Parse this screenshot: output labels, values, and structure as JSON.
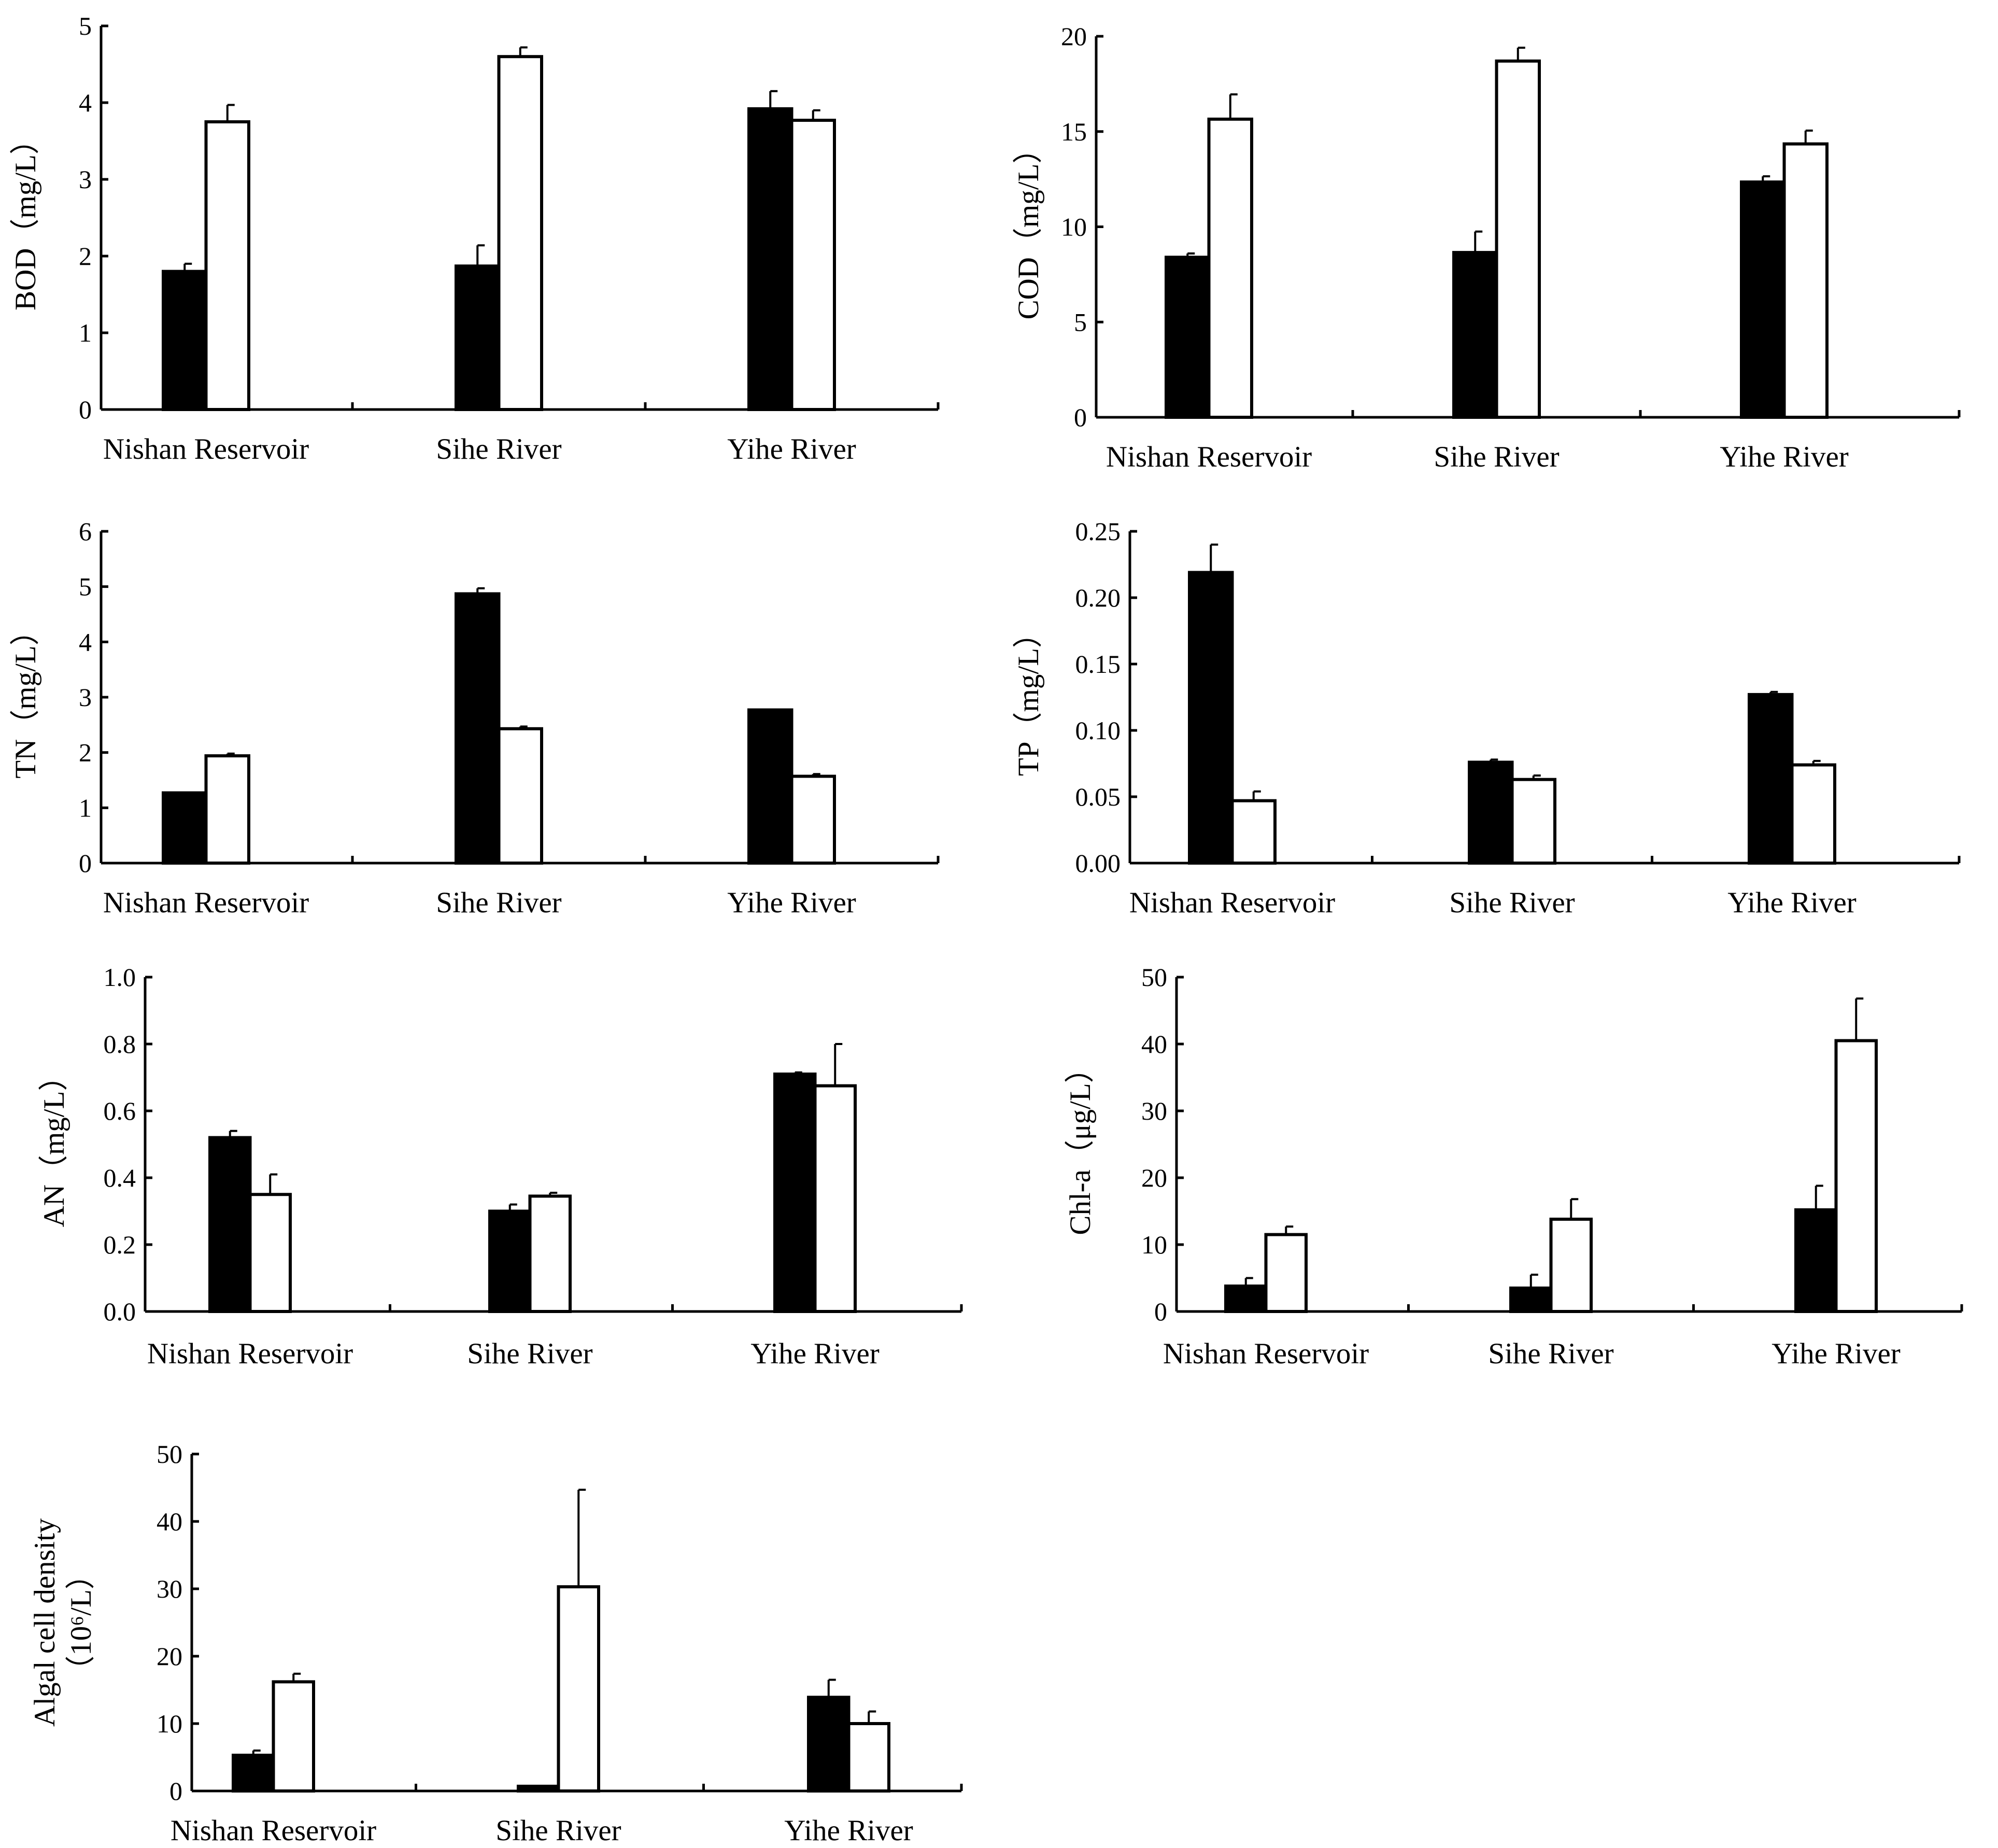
{
  "colors": {
    "series_a": "#000000",
    "series_b": "#ffffff",
    "stroke": "#000000"
  },
  "chart_data": [
    {
      "id": "bod",
      "type": "bar",
      "title": "",
      "ylabel_main": "BOD",
      "ylabel_unit": "（mg/L）",
      "ylim": [
        0,
        5
      ],
      "yticks": [
        "0",
        "1",
        "2",
        "3",
        "4",
        "5"
      ],
      "categories": [
        "Nishan Reservoir",
        "Sihe River",
        "Yihe River"
      ],
      "series": [
        {
          "name": "series 1 (black)",
          "values": [
            1.8,
            1.87,
            3.92
          ],
          "errors": [
            0.1,
            0.27,
            0.23
          ]
        },
        {
          "name": "series 2 (white)",
          "values": [
            3.75,
            4.6,
            3.77
          ],
          "errors": [
            0.22,
            0.12,
            0.13
          ]
        }
      ]
    },
    {
      "id": "cod",
      "type": "bar",
      "title": "",
      "ylabel_main": "COD",
      "ylabel_unit": "（mg/L）",
      "ylim": [
        0,
        20
      ],
      "yticks": [
        "0",
        "5",
        "10",
        "15",
        "20"
      ],
      "categories": [
        "Nishan Reservoir",
        "Sihe River",
        "Yihe River"
      ],
      "series": [
        {
          "name": "series 1 (black)",
          "values": [
            8.4,
            8.65,
            12.35
          ],
          "errors": [
            0.2,
            1.1,
            0.3
          ]
        },
        {
          "name": "series 2 (white)",
          "values": [
            15.65,
            18.7,
            14.35
          ],
          "errors": [
            1.3,
            0.7,
            0.7
          ]
        }
      ]
    },
    {
      "id": "tn",
      "type": "bar",
      "title": "",
      "ylabel_main": "TN",
      "ylabel_unit": "（mg/L）",
      "ylim": [
        0,
        6
      ],
      "yticks": [
        "0",
        "1",
        "2",
        "3",
        "4",
        "5",
        "6"
      ],
      "categories": [
        "Nishan Reservoir",
        "Sihe River",
        "Yihe River"
      ],
      "series": [
        {
          "name": "series 1 (black)",
          "values": [
            1.27,
            4.87,
            2.77
          ],
          "errors": [
            0,
            0.1,
            0
          ]
        },
        {
          "name": "series 2 (white)",
          "values": [
            1.94,
            2.43,
            1.57
          ],
          "errors": [
            0.04,
            0.04,
            0.04
          ]
        }
      ]
    },
    {
      "id": "tp",
      "type": "bar",
      "title": "",
      "ylabel_main": "TP",
      "ylabel_unit": "（mg/L）",
      "ylim": [
        0,
        0.25
      ],
      "yticks": [
        "0.00",
        "0.05",
        "0.10",
        "0.15",
        "0.20",
        "0.25"
      ],
      "categories": [
        "Nishan Reservoir",
        "Sihe River",
        "Yihe River"
      ],
      "series": [
        {
          "name": "series 1 (black)",
          "values": [
            0.219,
            0.076,
            0.127
          ],
          "errors": [
            0.021,
            0.002,
            0.002
          ]
        },
        {
          "name": "series 2 (white)",
          "values": [
            0.047,
            0.063,
            0.074
          ],
          "errors": [
            0.007,
            0.003,
            0.003
          ]
        }
      ]
    },
    {
      "id": "an",
      "type": "bar",
      "title": "",
      "ylabel_main": "AN",
      "ylabel_unit": "（mg/L）",
      "ylim": [
        0,
        1.0
      ],
      "yticks": [
        "0.0",
        "0.2",
        "0.4",
        "0.6",
        "0.8",
        "1.0"
      ],
      "categories": [
        "Nishan Reservoir",
        "Sihe River",
        "Yihe River"
      ],
      "series": [
        {
          "name": "series 1 (black)",
          "values": [
            0.52,
            0.3,
            0.71
          ],
          "errors": [
            0.02,
            0.02,
            0.005
          ]
        },
        {
          "name": "series 2 (white)",
          "values": [
            0.35,
            0.345,
            0.675
          ],
          "errors": [
            0.06,
            0.01,
            0.125
          ]
        }
      ]
    },
    {
      "id": "chla",
      "type": "bar",
      "title": "",
      "ylabel_main": "Chl-a",
      "ylabel_unit": "（μg/L）",
      "ylim": [
        0,
        50
      ],
      "yticks": [
        "0",
        "10",
        "20",
        "30",
        "40",
        "50"
      ],
      "categories": [
        "Nishan Reservoir",
        "Sihe River",
        "Yihe River"
      ],
      "series": [
        {
          "name": "series 1 (black)",
          "values": [
            3.8,
            3.5,
            15.2
          ],
          "errors": [
            1.2,
            2.0,
            3.6
          ]
        },
        {
          "name": "series 2 (white)",
          "values": [
            11.5,
            13.8,
            40.5
          ],
          "errors": [
            1.2,
            3.0,
            6.3
          ]
        }
      ]
    },
    {
      "id": "algal",
      "type": "bar",
      "title": "",
      "ylabel_main": "Algal cell density",
      "ylabel_unit": "（10⁶/L）",
      "ylim": [
        0,
        50
      ],
      "yticks": [
        "0",
        "10",
        "20",
        "30",
        "40",
        "50"
      ],
      "categories": [
        "Nishan Reservoir",
        "Sihe River",
        "Yihe River"
      ],
      "series": [
        {
          "name": "series 1 (black)",
          "values": [
            5.3,
            0.7,
            13.9
          ],
          "errors": [
            0.7,
            0,
            2.6
          ]
        },
        {
          "name": "series 2 (white)",
          "values": [
            16.2,
            30.3,
            10.0
          ],
          "errors": [
            1.2,
            14.4,
            1.8
          ]
        }
      ]
    }
  ]
}
